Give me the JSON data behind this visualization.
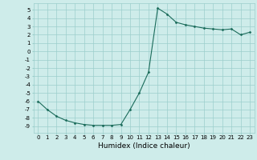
{
  "x": [
    0,
    1,
    2,
    3,
    4,
    5,
    6,
    7,
    8,
    9,
    10,
    11,
    12,
    13,
    14,
    15,
    16,
    17,
    18,
    19,
    20,
    21,
    22,
    23
  ],
  "y": [
    -6.0,
    -7.0,
    -7.8,
    -8.3,
    -8.6,
    -8.8,
    -8.9,
    -8.9,
    -8.9,
    -8.8,
    -7.0,
    -5.0,
    -2.5,
    5.2,
    4.5,
    3.5,
    3.2,
    3.0,
    2.8,
    2.7,
    2.6,
    2.7,
    2.0,
    2.3
  ],
  "line_color": "#1a6b5a",
  "marker": "D",
  "marker_size": 1.5,
  "xlabel": "Humidex (Indice chaleur)",
  "ylabel": "",
  "title": "",
  "bg_color": "#ceecea",
  "grid_color": "#9ccfcc",
  "ylim": [
    -9.8,
    5.8
  ],
  "xlim": [
    -0.5,
    23.5
  ],
  "yticks": [
    5,
    4,
    3,
    2,
    1,
    0,
    -1,
    -2,
    -3,
    -4,
    -5,
    -6,
    -7,
    -8,
    -9
  ],
  "xticks": [
    0,
    1,
    2,
    3,
    4,
    5,
    6,
    7,
    8,
    9,
    10,
    11,
    12,
    13,
    14,
    15,
    16,
    17,
    18,
    19,
    20,
    21,
    22,
    23
  ],
  "xtick_labels": [
    "0",
    "1",
    "2",
    "3",
    "4",
    "5",
    "6",
    "7",
    "8",
    "9",
    "10",
    "11",
    "12",
    "13",
    "14",
    "15",
    "16",
    "17",
    "18",
    "19",
    "20",
    "21",
    "22",
    "23"
  ],
  "tick_fontsize": 5.0,
  "xlabel_fontsize": 6.5,
  "line_width": 0.8
}
